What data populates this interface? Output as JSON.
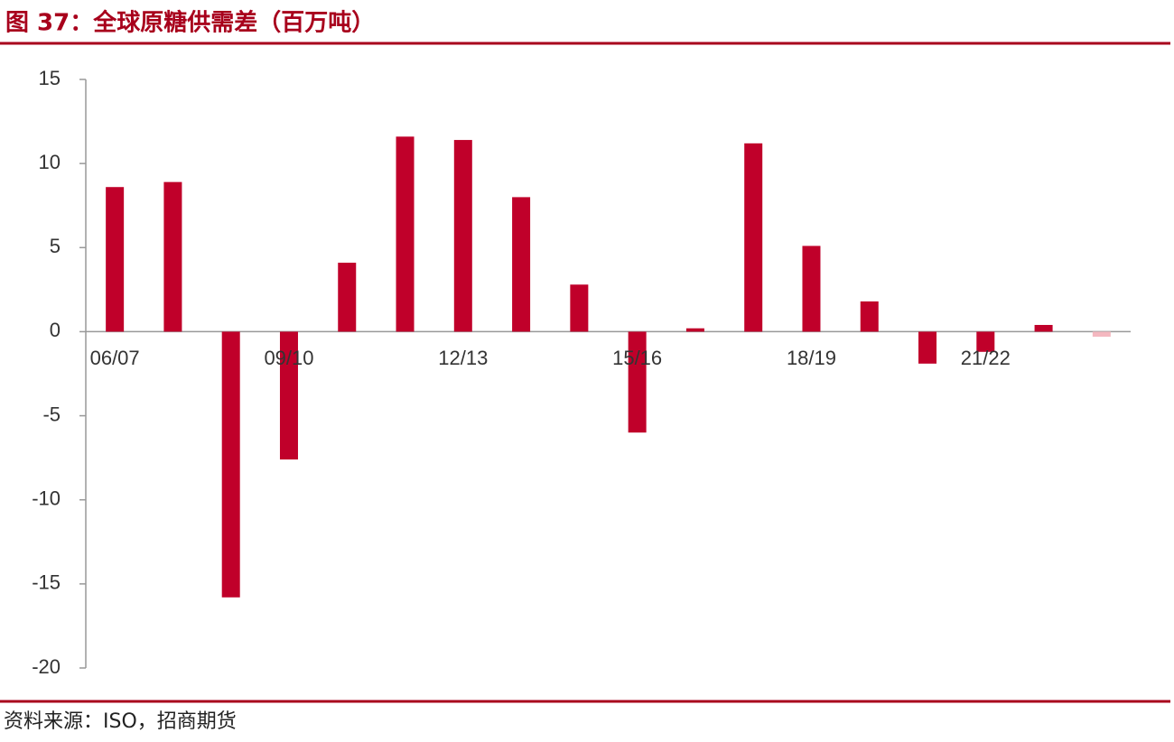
{
  "chart_data": {
    "type": "bar",
    "title": "图 37：全球原糖供需差（百万吨）",
    "source": "资料来源：ISO，招商期货",
    "categories": [
      "06/07",
      null,
      null,
      "09/10",
      null,
      null,
      "12/13",
      null,
      null,
      "15/16",
      null,
      null,
      "18/19",
      null,
      null,
      "21/22",
      null,
      null
    ],
    "values": [
      8.6,
      8.9,
      -15.8,
      -7.6,
      4.1,
      11.6,
      11.4,
      8.0,
      2.8,
      -6.0,
      0.2,
      11.2,
      5.1,
      1.8,
      -1.9,
      -1.2,
      0.4,
      -0.3
    ],
    "colors": [
      "#c0002a",
      "#c0002a",
      "#c0002a",
      "#c0002a",
      "#c0002a",
      "#c0002a",
      "#c0002a",
      "#c0002a",
      "#c0002a",
      "#c0002a",
      "#c0002a",
      "#c0002a",
      "#c0002a",
      "#c0002a",
      "#c0002a",
      "#c0002a",
      "#c0002a",
      "#f4b8c0"
    ],
    "ylim": [
      -20,
      15
    ],
    "yticks": [
      -20,
      -15,
      -10,
      -5,
      0,
      5,
      10,
      15
    ],
    "grid": false
  }
}
